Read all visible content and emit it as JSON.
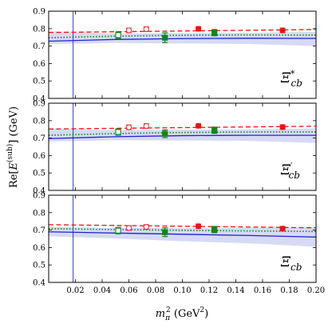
{
  "chart_data": {
    "type": "scatter",
    "xlabel": "m_π² (GeV²)",
    "ylabel": "Re[E^(sub)] (GeV)",
    "xlim": [
      0,
      0.2
    ],
    "ylim": [
      0.4,
      0.9
    ],
    "xticks": [
      "0.02",
      "0.04",
      "0.06",
      "0.08",
      "0.10",
      "0.12",
      "0.14",
      "0.16",
      "0.18",
      "0.20"
    ],
    "yticks": [
      "0.4",
      "0.5",
      "0.6",
      "0.7",
      "0.8",
      "0.9"
    ],
    "vline_x": 0.0183,
    "colors": {
      "open_red": "#ff3030",
      "filled_red": "#ee1111",
      "green": "#118811",
      "blue": "#2222cc",
      "band": "#c8cdf2"
    },
    "panels": [
      {
        "label": "Ξ*cb",
        "label_base": "Ξ",
        "label_sup": "*",
        "label_sub": "cb",
        "red_open": [
          {
            "x": 0.06,
            "y": 0.79,
            "err": 0.013
          },
          {
            "x": 0.073,
            "y": 0.797,
            "err": 0.013
          }
        ],
        "red_filled": [
          {
            "x": 0.112,
            "y": 0.799,
            "err": 0.012
          },
          {
            "x": 0.175,
            "y": 0.79,
            "err": 0.013
          }
        ],
        "green_open": [
          {
            "x": 0.052,
            "y": 0.763,
            "err": 0.018
          }
        ],
        "green_filled": [
          {
            "x": 0.087,
            "y": 0.748,
            "err": 0.028
          },
          {
            "x": 0.124,
            "y": 0.777,
            "err": 0.018
          }
        ],
        "red_dashed": {
          "x": [
            0.0,
            0.2
          ],
          "y": [
            0.778,
            0.795
          ]
        },
        "green_dotted": {
          "x": [
            0.0,
            0.05,
            0.1,
            0.15,
            0.2
          ],
          "y": [
            0.748,
            0.757,
            0.762,
            0.764,
            0.763
          ]
        },
        "blue_line": {
          "x": [
            0.0,
            0.05,
            0.1,
            0.15,
            0.2
          ],
          "y": [
            0.728,
            0.738,
            0.743,
            0.745,
            0.744
          ]
        },
        "band": {
          "x": [
            0.0,
            0.05,
            0.1,
            0.15,
            0.2
          ],
          "upper": [
            0.785,
            0.772,
            0.775,
            0.776,
            0.782
          ],
          "lower": [
            0.712,
            0.718,
            0.715,
            0.712,
            0.7
          ]
        }
      },
      {
        "label": "Ξ′cb",
        "label_base": "Ξ",
        "label_sup": "′",
        "label_sub": "cb",
        "red_open": [
          {
            "x": 0.06,
            "y": 0.762,
            "err": 0.013
          },
          {
            "x": 0.073,
            "y": 0.769,
            "err": 0.013
          }
        ],
        "red_filled": [
          {
            "x": 0.112,
            "y": 0.77,
            "err": 0.012
          },
          {
            "x": 0.175,
            "y": 0.763,
            "err": 0.013
          }
        ],
        "green_open": [
          {
            "x": 0.052,
            "y": 0.735,
            "err": 0.018
          }
        ],
        "green_filled": [
          {
            "x": 0.087,
            "y": 0.725,
            "err": 0.022
          },
          {
            "x": 0.124,
            "y": 0.745,
            "err": 0.018
          }
        ],
        "red_dashed": {
          "x": [
            0.0,
            0.2
          ],
          "y": [
            0.752,
            0.768
          ]
        },
        "green_dotted": {
          "x": [
            0.0,
            0.05,
            0.1,
            0.15,
            0.2
          ],
          "y": [
            0.716,
            0.726,
            0.732,
            0.735,
            0.735
          ]
        },
        "blue_line": {
          "x": [
            0.0,
            0.05,
            0.1,
            0.15,
            0.2
          ],
          "y": [
            0.697,
            0.708,
            0.714,
            0.716,
            0.716
          ]
        },
        "band": {
          "x": [
            0.0,
            0.05,
            0.1,
            0.15,
            0.2
          ],
          "upper": [
            0.755,
            0.745,
            0.748,
            0.75,
            0.756
          ],
          "lower": [
            0.68,
            0.688,
            0.686,
            0.684,
            0.672
          ]
        }
      },
      {
        "label": "Ξcb",
        "label_base": "Ξ",
        "label_sup": "",
        "label_sub": "cb",
        "red_open": [
          {
            "x": 0.06,
            "y": 0.712,
            "err": 0.013
          },
          {
            "x": 0.073,
            "y": 0.718,
            "err": 0.013
          }
        ],
        "red_filled": [
          {
            "x": 0.112,
            "y": 0.722,
            "err": 0.012
          },
          {
            "x": 0.175,
            "y": 0.708,
            "err": 0.013
          }
        ],
        "green_open": [
          {
            "x": 0.052,
            "y": 0.697,
            "err": 0.018
          }
        ],
        "green_filled": [
          {
            "x": 0.087,
            "y": 0.688,
            "err": 0.025
          },
          {
            "x": 0.124,
            "y": 0.703,
            "err": 0.018
          }
        ],
        "red_dashed": {
          "x": [
            0.0,
            0.2
          ],
          "y": [
            0.731,
            0.713
          ]
        },
        "green_dotted": {
          "x": [
            0.0,
            0.05,
            0.1,
            0.15,
            0.2
          ],
          "y": [
            0.708,
            0.703,
            0.699,
            0.695,
            0.692
          ]
        },
        "blue_line": {
          "x": [
            0.0,
            0.05,
            0.1,
            0.15,
            0.2
          ],
          "y": [
            0.69,
            0.683,
            0.676,
            0.669,
            0.66
          ]
        },
        "band": {
          "x": [
            0.0,
            0.05,
            0.1,
            0.15,
            0.2
          ],
          "upper": [
            0.718,
            0.712,
            0.712,
            0.712,
            0.716
          ],
          "lower": [
            0.664,
            0.652,
            0.636,
            0.624,
            0.604
          ]
        }
      }
    ]
  }
}
